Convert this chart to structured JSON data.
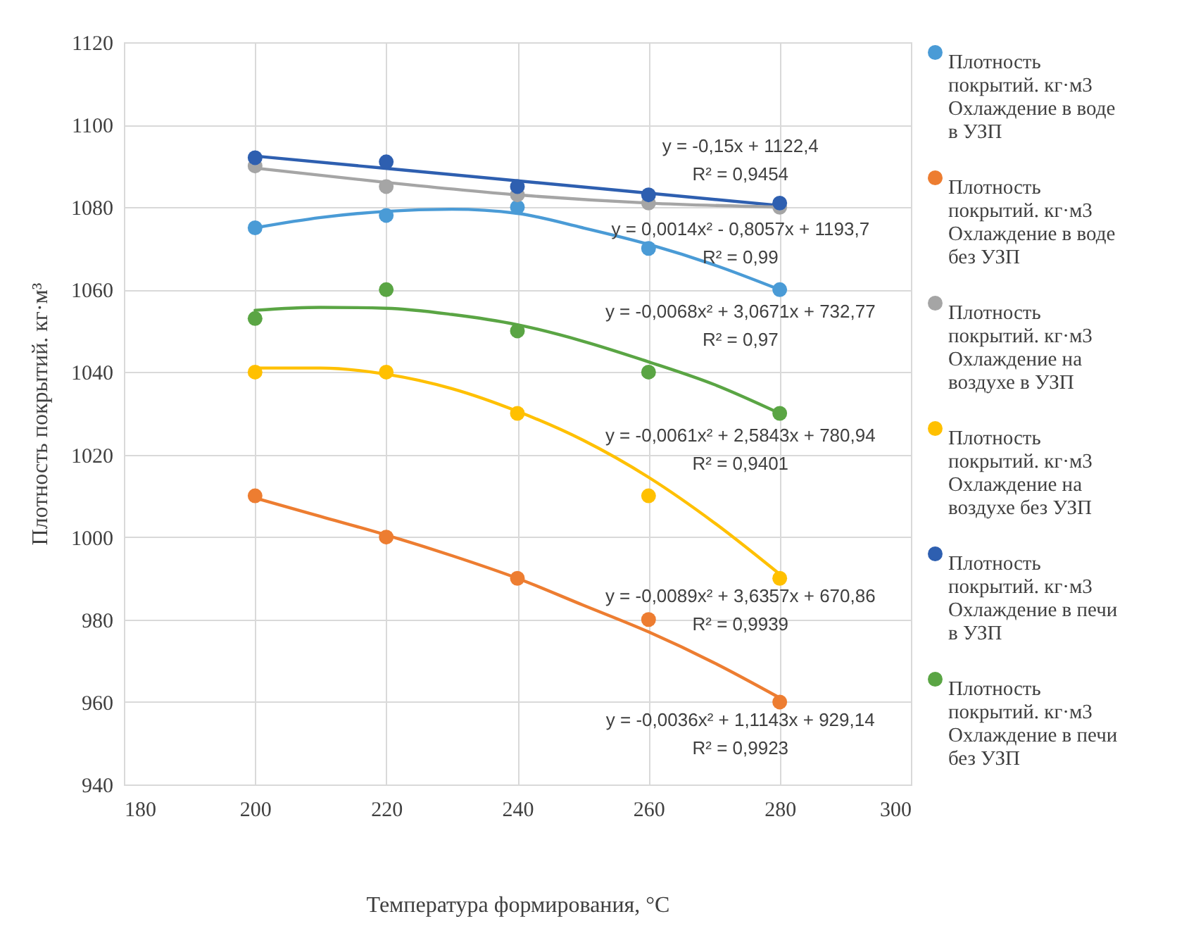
{
  "chart_data": {
    "type": "scatter",
    "xlabel": "Температура формирования, °C",
    "ylabel": "Плотность покрытий. кг·м³",
    "xlim": [
      180,
      300
    ],
    "xticks": [
      180,
      200,
      220,
      240,
      260,
      280,
      300
    ],
    "ylim": [
      940,
      1120
    ],
    "yticks": [
      940,
      960,
      980,
      1000,
      1020,
      1040,
      1060,
      1080,
      1100,
      1120
    ],
    "grid": true,
    "legend": "right",
    "series": [
      {
        "name": "Плотность покрытий. кг·м3 Охлаждение в воде в УЗП",
        "marker": "circle",
        "color": "#4a9bd6",
        "x": [
          200,
          220,
          240,
          260,
          280
        ],
        "values": [
          1075,
          1078,
          1080,
          1070,
          1060
        ]
      },
      {
        "name": "Плотность покрытий. кг·м3 Охлаждение в воде без УЗП",
        "marker": "circle",
        "color": "#ed7d31",
        "x": [
          200,
          220,
          240,
          260,
          280
        ],
        "values": [
          1010,
          1000,
          990,
          980,
          960
        ]
      },
      {
        "name": "Плотность покрытий. кг·м3 Охлаждение на воздухе в УЗП",
        "marker": "circle",
        "color": "#a5a5a5",
        "x": [
          200,
          220,
          240,
          260,
          280
        ],
        "values": [
          1090,
          1085,
          1083,
          1081,
          1080
        ]
      },
      {
        "name": "Плотность покрытий. кг·м3 Охлаждение на воздухе без УЗП",
        "marker": "circle",
        "color": "#ffc000",
        "x": [
          200,
          220,
          240,
          260,
          280
        ],
        "values": [
          1040,
          1040,
          1030,
          1010,
          990
        ]
      },
      {
        "name": "Плотность покрытий. кг·м3 Охлаждение в печи в УЗП",
        "marker": "circle",
        "color": "#2e5fb0",
        "x": [
          200,
          220,
          240,
          260,
          280
        ],
        "values": [
          1092,
          1091,
          1085,
          1083,
          1081
        ]
      },
      {
        "name": "Плотность покрытий. кг·м3 Охлаждение в печи без УЗП",
        "marker": "circle",
        "color": "#5aa544",
        "x": [
          200,
          220,
          240,
          260,
          280
        ],
        "values": [
          1053,
          1060,
          1050,
          1040,
          1030
        ]
      },
      {
        "type": "line",
        "marker": "none",
        "color": "#2e5fb0",
        "x": [
          200,
          240,
          280
        ],
        "values": [
          1092.4,
          1086.4,
          1080.4
        ]
      },
      {
        "type": "line",
        "marker": "none",
        "color": "#a5a5a5",
        "x": [
          200,
          220,
          240,
          260,
          280
        ],
        "values": [
          1089.5,
          1086,
          1083,
          1081,
          1080
        ]
      },
      {
        "type": "line",
        "marker": "none",
        "color": "#4a9bd6",
        "x": [
          200,
          210,
          220,
          230,
          240,
          250,
          260,
          270,
          280
        ],
        "values": [
          1075,
          1077.5,
          1079,
          1079.5,
          1078.5,
          1075,
          1071,
          1066,
          1060
        ]
      },
      {
        "type": "line",
        "marker": "none",
        "color": "#5aa544",
        "x": [
          200,
          210,
          220,
          230,
          240,
          250,
          260,
          270,
          280
        ],
        "values": [
          1055,
          1055.7,
          1055.5,
          1054,
          1051.5,
          1047.5,
          1042.5,
          1037,
          1030
        ]
      },
      {
        "type": "line",
        "marker": "none",
        "color": "#ffc000",
        "x": [
          200,
          210,
          220,
          230,
          240,
          250,
          260,
          270,
          280
        ],
        "values": [
          1041,
          1041,
          1039.5,
          1036,
          1030.5,
          1023.5,
          1014.5,
          1003.5,
          991
        ]
      },
      {
        "type": "line",
        "marker": "none",
        "color": "#ed7d31",
        "x": [
          200,
          210,
          220,
          230,
          240,
          250,
          260,
          270,
          280
        ],
        "values": [
          1009.5,
          1005,
          1000.5,
          995.5,
          990,
          983.5,
          977,
          969.5,
          961
        ]
      }
    ],
    "annotations": [
      "y = -0,15x + 1122,4",
      "R² = 0,9454",
      "y = 0,0014x² - 0,8057x + 1193,7",
      "R² = 0,99",
      "y = -0,0068x² + 3,0671x + 732,77",
      "R² = 0,97",
      "y = -0,0061x² + 2,5843x + 780,94",
      "R² = 0,9401",
      "y = -0,0089x² + 3,6357x + 670,86",
      "R² = 0,9939",
      "y = -0,0036x² + 1,1143x + 929,14",
      "R² = 0,9923"
    ]
  }
}
